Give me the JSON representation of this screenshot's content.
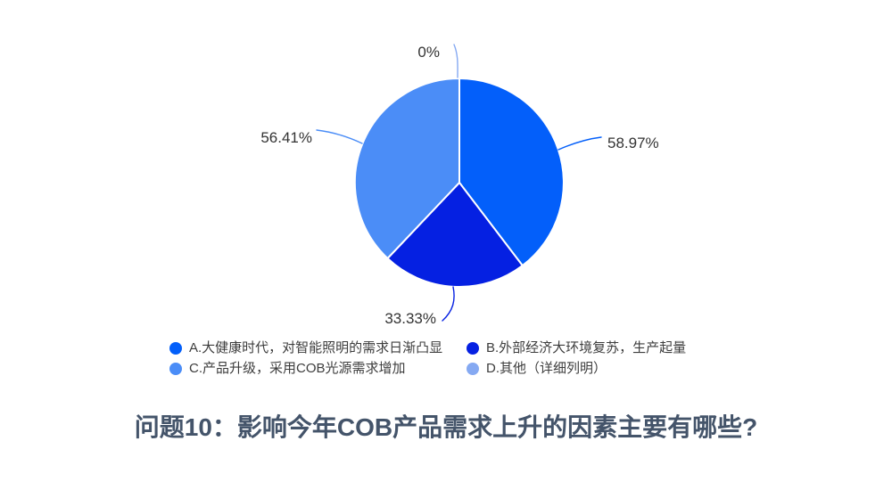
{
  "chart_data": {
    "type": "pie",
    "title": "问题10：影响今年COB产品需求上升的因素主要有哪些?",
    "title_color": "#44546a",
    "start_angle_deg": 0,
    "direction": "clockwise",
    "legend_position": "bottom",
    "categories": [
      "A.大健康时代，对智能照明的需求日渐凸显",
      "B.外部经济大环境复苏，生产起量",
      "C.产品升级，采用COB光源需求增加",
      "D.其他（详细列明）"
    ],
    "values": [
      58.97,
      33.33,
      56.41,
      0
    ],
    "pct_labels": [
      "58.97%",
      "33.33%",
      "56.41%",
      "0%"
    ],
    "label_color": "#333333",
    "slice_border_color": "#ffffff",
    "legend": [
      {
        "label": "A.大健康时代，对智能照明的需求日渐凸显",
        "color": "#035ffa"
      },
      {
        "label": "B.外部经济大环境复苏，生产起量",
        "color": "#0520e2"
      },
      {
        "label": "C.产品升级，采用COB光源需求增加",
        "color": "#4b8df7"
      },
      {
        "label": "D.其他（详细列明）",
        "color": "#85a9f2"
      }
    ]
  }
}
